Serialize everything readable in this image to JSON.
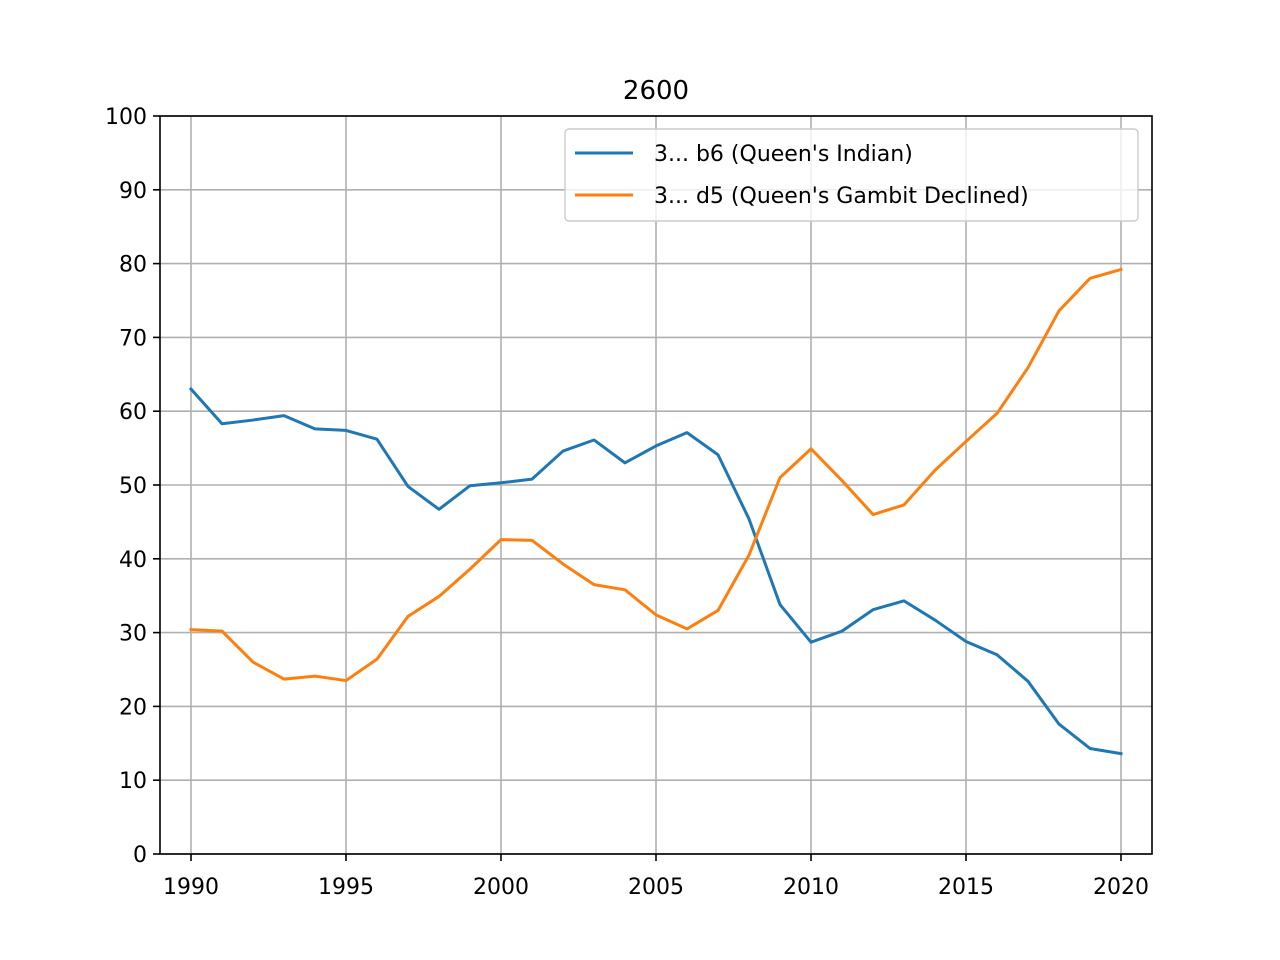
{
  "chart_data": {
    "type": "line",
    "title": "2600",
    "xlabel": "",
    "ylabel": "",
    "xlim": [
      1989,
      2021
    ],
    "ylim": [
      0,
      100
    ],
    "grid": true,
    "legend_position": "top-right",
    "x_ticks": [
      1990,
      1995,
      2000,
      2005,
      2010,
      2015,
      2020
    ],
    "y_ticks": [
      0,
      10,
      20,
      30,
      40,
      50,
      60,
      70,
      80,
      90,
      100
    ],
    "x": [
      1990,
      1991,
      1992,
      1993,
      1994,
      1995,
      1996,
      1997,
      1998,
      1999,
      2000,
      2001,
      2002,
      2003,
      2004,
      2005,
      2006,
      2007,
      2008,
      2009,
      2010,
      2011,
      2012,
      2013,
      2014,
      2015,
      2016,
      2017,
      2018,
      2019,
      2020
    ],
    "series": [
      {
        "name": "3... b6 (Queen's Indian)",
        "color": "#1f77b4",
        "values": [
          63.0,
          58.3,
          58.8,
          59.4,
          57.6,
          57.4,
          56.2,
          49.8,
          46.7,
          49.9,
          50.3,
          50.8,
          54.6,
          56.1,
          53.0,
          55.3,
          57.1,
          54.1,
          45.4,
          33.8,
          28.7,
          30.2,
          33.1,
          34.3,
          31.7,
          28.8,
          27.0,
          23.4,
          17.6,
          14.3,
          13.6
        ]
      },
      {
        "name": "3... d5 (Queen's Gambit Declined)",
        "color": "#ff7f0e",
        "values": [
          30.4,
          30.2,
          26.0,
          23.7,
          24.1,
          23.5,
          26.4,
          32.2,
          34.9,
          38.6,
          42.6,
          42.5,
          39.3,
          36.5,
          35.8,
          32.4,
          30.5,
          33.0,
          40.5,
          51.0,
          54.9,
          50.6,
          46.0,
          47.3,
          52.0,
          55.9,
          59.7,
          65.9,
          73.6,
          78.0,
          79.2
        ]
      }
    ]
  }
}
